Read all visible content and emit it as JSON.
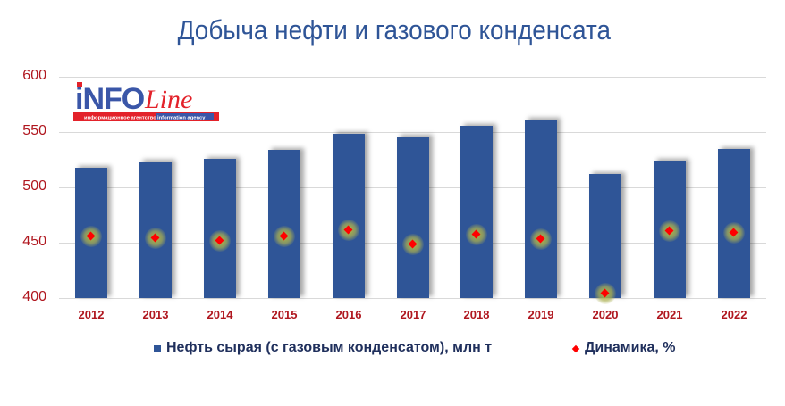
{
  "title": "Добыча нефти и газового конденсата",
  "logo": {
    "brand_left": "iNFO",
    "brand_right": "Line",
    "tagline_ru": "информационное агентство",
    "tagline_en": "information agency"
  },
  "legend": {
    "bars": "Нефть сырая (с газовым конденсатом), млн т",
    "markers": "Динамика, %"
  },
  "colors": {
    "bar": "#2f5597",
    "marker": "#ff0000",
    "axis_text": "#b0171f",
    "title": "#2f5597",
    "legend_text": "#1f2f5c"
  },
  "y_ticks": [
    "600",
    "550",
    "500",
    "450",
    "400"
  ],
  "x_ticks": [
    "2012",
    "2013",
    "2014",
    "2015",
    "2016",
    "2017",
    "2018",
    "2019",
    "2020",
    "2021",
    "2022"
  ],
  "chart_data": {
    "type": "bar",
    "title": "Добыча нефти и газового конденсата",
    "xlabel": "",
    "ylabel": "",
    "ylim": [
      400,
      600
    ],
    "y_ticks": [
      400,
      450,
      500,
      550,
      600
    ],
    "grid": true,
    "legend_position": "bottom",
    "categories": [
      "2012",
      "2013",
      "2014",
      "2015",
      "2016",
      "2017",
      "2018",
      "2019",
      "2020",
      "2021",
      "2022"
    ],
    "series": [
      {
        "name": "Нефть сырая (с газовым конденсатом), млн т",
        "type": "bar",
        "axis": "primary",
        "values": [
          518,
          523,
          526,
          534,
          548,
          546,
          556,
          561,
          512,
          524,
          535
        ]
      },
      {
        "name": "Динамика, %",
        "type": "scatter",
        "axis": "secondary (hidden)",
        "values": [
          1.3,
          1.0,
          0.6,
          1.4,
          2.5,
          -0.1,
          1.6,
          0.8,
          -8.6,
          2.2,
          2.0
        ]
      }
    ]
  }
}
